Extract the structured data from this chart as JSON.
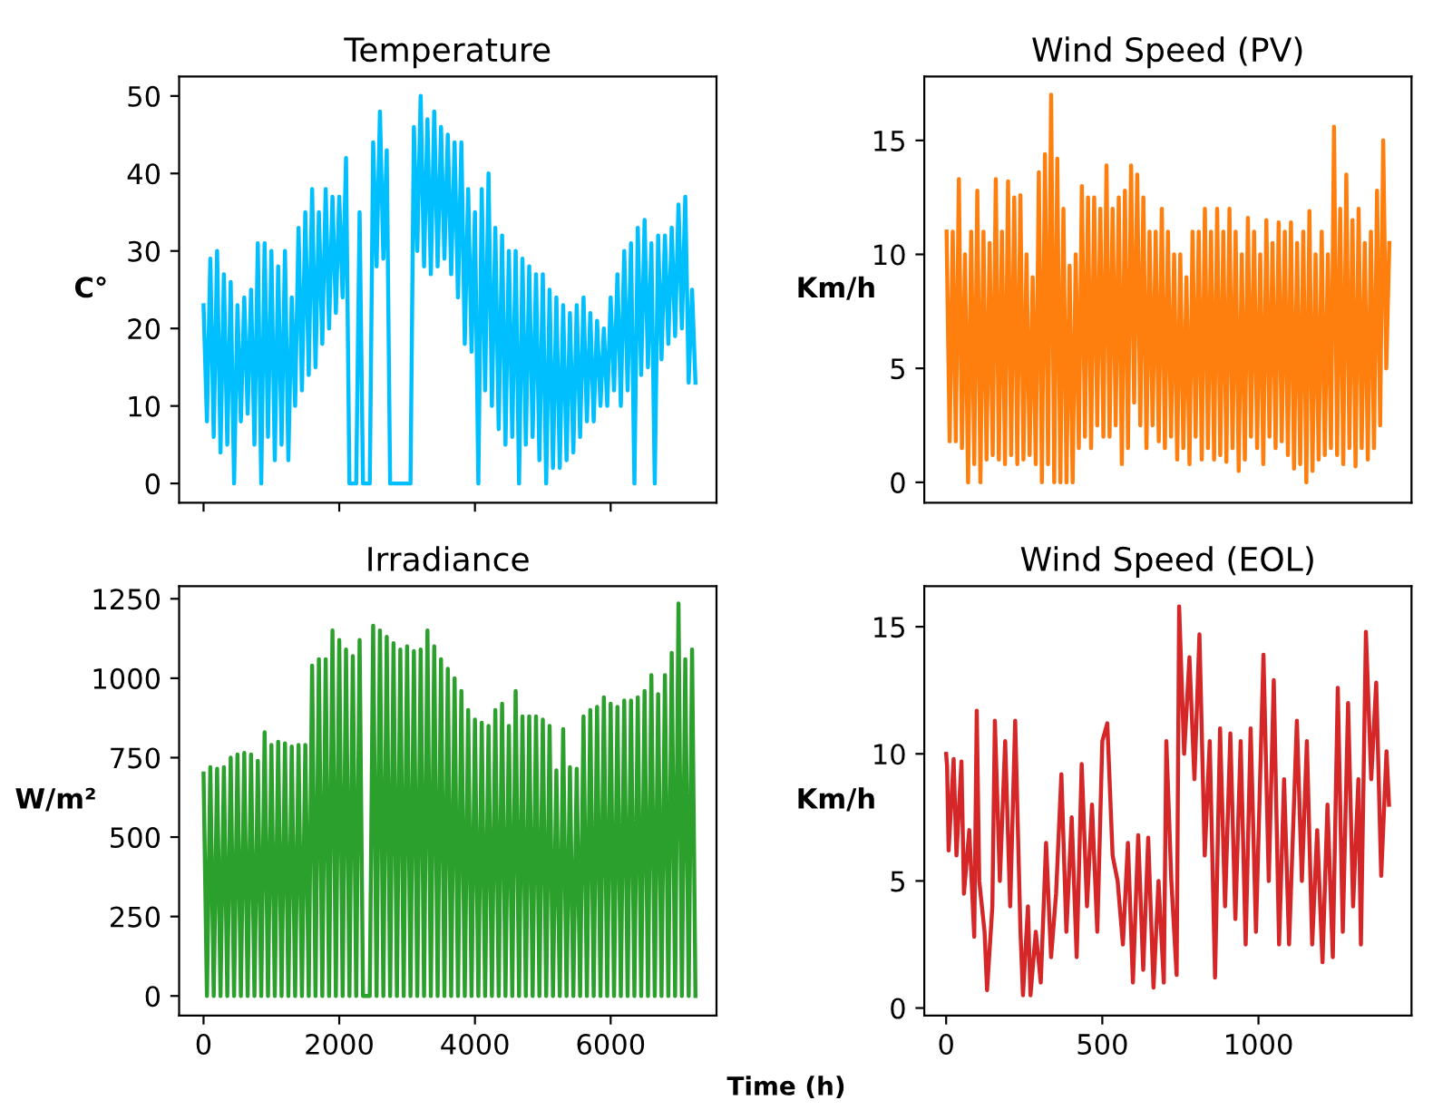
{
  "chart_data": [
    {
      "type": "line",
      "title": "Temperature",
      "ylabel": "C°",
      "tick_labels": "y",
      "xlim": [
        -360,
        7560
      ],
      "xticks": [
        {
          "value": 0,
          "label": null
        },
        {
          "value": 2000,
          "label": null
        },
        {
          "value": 4000,
          "label": null
        },
        {
          "value": 6000,
          "label": null
        }
      ],
      "ylim": [
        -2.5,
        52.5
      ],
      "yticks": [
        0,
        10,
        20,
        30,
        40,
        50
      ],
      "x": [
        0,
        50,
        100,
        150,
        200,
        250,
        300,
        350,
        400,
        450,
        500,
        550,
        600,
        650,
        700,
        750,
        800,
        850,
        900,
        950,
        1000,
        1050,
        1100,
        1150,
        1200,
        1250,
        1300,
        1350,
        1400,
        1450,
        1500,
        1550,
        1600,
        1650,
        1700,
        1750,
        1800,
        1850,
        1900,
        1950,
        2000,
        2050,
        2100,
        2150,
        2200,
        2250,
        2300,
        2350,
        2400,
        2450,
        2500,
        2550,
        2600,
        2650,
        2700,
        2750,
        2800,
        2850,
        2900,
        2950,
        3000,
        3050,
        3100,
        3150,
        3200,
        3250,
        3300,
        3350,
        3400,
        3450,
        3500,
        3550,
        3600,
        3650,
        3700,
        3750,
        3800,
        3850,
        3900,
        3950,
        4000,
        4050,
        4100,
        4150,
        4200,
        4250,
        4300,
        4350,
        4400,
        4450,
        4500,
        4550,
        4600,
        4650,
        4700,
        4750,
        4800,
        4850,
        4900,
        4950,
        5000,
        5050,
        5100,
        5150,
        5200,
        5250,
        5300,
        5350,
        5400,
        5450,
        5500,
        5550,
        5600,
        5650,
        5700,
        5750,
        5800,
        5850,
        5900,
        5950,
        6000,
        6050,
        6100,
        6150,
        6200,
        6250,
        6300,
        6350,
        6400,
        6450,
        6500,
        6550,
        6600,
        6650,
        6700,
        6750,
        6800,
        6850,
        6900,
        6950,
        7000,
        7050,
        7100,
        7150,
        7200,
        7250
      ],
      "series": [
        {
          "color": "#00bfff",
          "values": [
            23,
            8,
            29,
            6,
            30,
            4,
            27,
            5,
            26,
            0,
            23,
            8,
            24,
            9,
            25,
            5,
            31,
            0,
            31,
            6,
            30,
            3,
            28,
            5,
            30,
            3,
            24,
            10,
            33,
            12,
            35,
            14,
            38,
            15,
            35,
            18,
            38,
            20,
            37,
            22,
            37,
            24,
            42,
            0,
            0,
            0,
            35,
            0,
            0,
            0,
            44,
            28,
            48,
            29,
            43,
            0,
            0,
            0,
            0,
            0,
            0,
            0,
            46,
            30,
            50,
            28,
            47,
            27,
            48,
            28,
            46,
            29,
            45,
            27,
            44,
            24,
            44,
            18,
            38,
            17,
            35,
            0,
            38,
            12,
            40,
            10,
            33,
            7,
            32,
            5,
            30,
            6,
            30,
            0,
            29,
            5,
            28,
            6,
            27,
            3,
            27,
            0,
            25,
            2,
            24,
            2,
            23,
            3,
            22,
            4,
            23,
            6,
            24,
            8,
            22,
            8,
            21,
            10,
            20,
            10,
            24,
            12,
            27,
            10,
            30,
            12,
            31,
            0,
            33,
            14,
            34,
            15,
            31,
            0,
            32,
            16,
            32,
            18,
            33,
            19,
            36,
            20,
            37,
            13,
            25,
            13
          ]
        }
      ]
    },
    {
      "type": "line",
      "title": "Wind Speed (PV)",
      "ylabel": "Km/h",
      "tick_labels": "y",
      "ylim": [
        -0.9,
        17.8
      ],
      "yticks": [
        0,
        5,
        10,
        15
      ],
      "categories": [
        null,
        null,
        null,
        null,
        null,
        null,
        null,
        null,
        null,
        null,
        null,
        null,
        null,
        null,
        null,
        null,
        null,
        null,
        null,
        null,
        null,
        null,
        null,
        null,
        null,
        null,
        null,
        null,
        null,
        null,
        null,
        null,
        null,
        null,
        null,
        null,
        null,
        null,
        null,
        null,
        null,
        null,
        null,
        null,
        null,
        null,
        null,
        null,
        null,
        null,
        null,
        null,
        null,
        null,
        null,
        null,
        null,
        null,
        null,
        null,
        null,
        null,
        null,
        null,
        null,
        null,
        null,
        null,
        null,
        null,
        null,
        null,
        null,
        null,
        null,
        null,
        null,
        null,
        null,
        null,
        null,
        null,
        null,
        null,
        null,
        null,
        null,
        null,
        null,
        null,
        null,
        null,
        null,
        null,
        null,
        null,
        null,
        null,
        null,
        null,
        null,
        null,
        null,
        null,
        null,
        null,
        null,
        null,
        null,
        null,
        null,
        null,
        null,
        null,
        null,
        null,
        null,
        null,
        null,
        null,
        null,
        null,
        null,
        null,
        null,
        null,
        null,
        null,
        null,
        null,
        null,
        null,
        null,
        null,
        null,
        null,
        null,
        null,
        null,
        null,
        null,
        null,
        null,
        null,
        null
      ],
      "series": [
        {
          "color": "#ff7f0e",
          "values": [
            11,
            1.8,
            11,
            1.8,
            13.3,
            1.5,
            10,
            0,
            11,
            0.8,
            12.8,
            0,
            11,
            1,
            10.5,
            1.2,
            13.3,
            1,
            11,
            0.8,
            13.2,
            1.2,
            12.5,
            0.8,
            12.6,
            1,
            10,
            1.2,
            9,
            0.8,
            13.6,
            0,
            14.4,
            0.8,
            17,
            0,
            14.2,
            0,
            12,
            0,
            9.5,
            0,
            10,
            1.5,
            13,
            2,
            12.5,
            1.5,
            12.5,
            2.5,
            12,
            2,
            13.9,
            2,
            12,
            2.5,
            12.5,
            0.8,
            12.8,
            1.5,
            13.9,
            3.5,
            13.5,
            2.5,
            12.5,
            1.5,
            11,
            2.5,
            11,
            1.8,
            12,
            1.5,
            11,
            2,
            10,
            1,
            10,
            1.5,
            9,
            0.8,
            11,
            2,
            11,
            1,
            12,
            1.5,
            11,
            1,
            12,
            1.2,
            11,
            0.9,
            12,
            1.5,
            11,
            0.5,
            10,
            1,
            11.6,
            2,
            11,
            1.5,
            10,
            0.8,
            11.5,
            2,
            10.5,
            1.5,
            11.4,
            1.8,
            11,
            1.2,
            11.4,
            0.6,
            10.5,
            0.8,
            11,
            0,
            11.9,
            0.5,
            10,
            1,
            11,
            1.2,
            10,
            1.5,
            15.6,
            1.2,
            12,
            0.8,
            13.5,
            1.5,
            11.5,
            0.7,
            12,
            1.5,
            10.5,
            1,
            11,
            1.5,
            12.8,
            2.5,
            15,
            5,
            10.5
          ]
        }
      ]
    },
    {
      "type": "line",
      "title": "Irradiance",
      "ylabel": "W/m²",
      "xlabel": "Time (h)",
      "xlim": [
        -360,
        7560
      ],
      "xticks": [
        0,
        2000,
        4000,
        6000
      ],
      "ylim": [
        -62,
        1290
      ],
      "yticks": [
        0,
        250,
        500,
        750,
        1000,
        1250
      ],
      "x": [
        0,
        50,
        100,
        150,
        200,
        250,
        300,
        350,
        400,
        450,
        500,
        550,
        600,
        650,
        700,
        750,
        800,
        850,
        900,
        950,
        1000,
        1050,
        1100,
        1150,
        1200,
        1250,
        1300,
        1350,
        1400,
        1450,
        1500,
        1550,
        1600,
        1650,
        1700,
        1750,
        1800,
        1850,
        1900,
        1950,
        2000,
        2050,
        2100,
        2150,
        2200,
        2250,
        2300,
        2350,
        2400,
        2450,
        2500,
        2550,
        2600,
        2650,
        2700,
        2750,
        2800,
        2850,
        2900,
        2950,
        3000,
        3050,
        3100,
        3150,
        3200,
        3250,
        3300,
        3350,
        3400,
        3450,
        3500,
        3550,
        3600,
        3650,
        3700,
        3750,
        3800,
        3850,
        3900,
        3950,
        4000,
        4050,
        4100,
        4150,
        4200,
        4250,
        4300,
        4350,
        4400,
        4450,
        4500,
        4550,
        4600,
        4650,
        4700,
        4750,
        4800,
        4850,
        4900,
        4950,
        5000,
        5050,
        5100,
        5150,
        5200,
        5250,
        5300,
        5350,
        5400,
        5450,
        5500,
        5550,
        5600,
        5650,
        5700,
        5750,
        5800,
        5850,
        5900,
        5950,
        6000,
        6050,
        6100,
        6150,
        6200,
        6250,
        6300,
        6350,
        6400,
        6450,
        6500,
        6550,
        6600,
        6650,
        6700,
        6750,
        6800,
        6850,
        6900,
        6950,
        7000,
        7050,
        7100,
        7150,
        7200,
        7250
      ],
      "series": [
        {
          "color": "#2ca02c",
          "values": [
            700,
            0,
            720,
            0,
            715,
            0,
            720,
            0,
            750,
            0,
            760,
            0,
            765,
            0,
            760,
            0,
            740,
            0,
            830,
            0,
            790,
            0,
            800,
            0,
            795,
            0,
            785,
            0,
            790,
            0,
            790,
            0,
            1040,
            0,
            1060,
            0,
            1060,
            0,
            1150,
            0,
            1120,
            0,
            1090,
            0,
            1070,
            0,
            1120,
            0,
            0,
            0,
            1165,
            0,
            1150,
            0,
            1130,
            0,
            1110,
            0,
            1090,
            0,
            1100,
            0,
            1085,
            0,
            1090,
            0,
            1150,
            0,
            1100,
            0,
            1060,
            0,
            1030,
            0,
            1000,
            0,
            960,
            0,
            900,
            0,
            870,
            0,
            860,
            0,
            850,
            0,
            900,
            0,
            920,
            0,
            850,
            0,
            960,
            0,
            880,
            0,
            880,
            0,
            880,
            0,
            870,
            0,
            850,
            0,
            710,
            0,
            840,
            0,
            720,
            0,
            715,
            0,
            880,
            0,
            900,
            0,
            910,
            0,
            940,
            0,
            920,
            0,
            910,
            0,
            930,
            0,
            930,
            0,
            940,
            0,
            960,
            0,
            1010,
            0,
            950,
            0,
            1010,
            0,
            1080,
            0,
            1235,
            0,
            1060,
            0,
            1090,
            0
          ]
        }
      ]
    },
    {
      "type": "line",
      "title": "Wind Speed (EOL)",
      "ylabel": "Km/h",
      "xlim": [
        -70,
        1490
      ],
      "xticks": [
        0,
        500,
        1000
      ],
      "ylim": [
        -0.3,
        16.6
      ],
      "yticks": [
        0,
        5,
        10,
        15
      ],
      "x": [
        0,
        3,
        8,
        24,
        33,
        49,
        57,
        74,
        90,
        98,
        106,
        123,
        131,
        148,
        156,
        172,
        189,
        205,
        221,
        238,
        246,
        262,
        270,
        287,
        303,
        320,
        336,
        352,
        369,
        385,
        402,
        418,
        434,
        451,
        467,
        484,
        500,
        516,
        533,
        549,
        566,
        582,
        598,
        615,
        631,
        647,
        664,
        680,
        697,
        705,
        721,
        738,
        746,
        762,
        779,
        795,
        811,
        828,
        844,
        861,
        877,
        893,
        910,
        926,
        943,
        959,
        975,
        992,
        1016,
        1033,
        1049,
        1066,
        1082,
        1098,
        1123,
        1139,
        1155,
        1172,
        1188,
        1205,
        1221,
        1238,
        1254,
        1270,
        1287,
        1303,
        1320,
        1328,
        1344,
        1361,
        1377,
        1393,
        1410,
        1418
      ],
      "series": [
        {
          "color": "#d62728",
          "values": [
            10,
            9.5,
            6.2,
            9.8,
            6,
            9.7,
            4.5,
            7,
            2.8,
            11.7,
            5,
            3,
            0.7,
            4,
            11.3,
            5,
            10.5,
            4,
            11.3,
            3,
            0.5,
            4,
            0.5,
            3,
            1,
            6.5,
            2,
            4.5,
            9.2,
            3,
            7.5,
            2,
            9.6,
            4,
            8,
            3,
            10.5,
            11.2,
            6,
            5,
            2.5,
            6.5,
            1,
            6.8,
            1.5,
            6.7,
            0.8,
            5,
            1,
            10.5,
            5,
            1.3,
            15.8,
            10,
            13.8,
            9,
            14.7,
            6,
            10.5,
            1.2,
            11,
            4,
            10.8,
            3.5,
            10.5,
            2.5,
            11,
            3,
            13.9,
            5,
            12.9,
            2.5,
            9,
            2.5,
            11.3,
            5,
            10.5,
            2.5,
            7,
            1.8,
            8,
            2,
            12.6,
            3,
            12,
            4,
            9,
            2.5,
            14.8,
            9,
            12.8,
            5.2,
            10.1,
            8
          ]
        }
      ]
    }
  ]
}
